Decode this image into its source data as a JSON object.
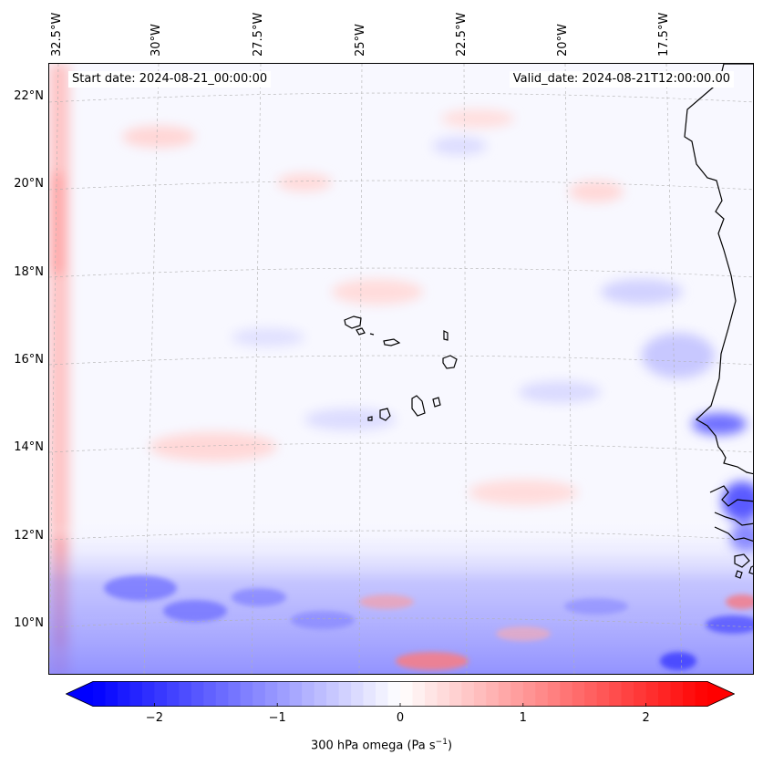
{
  "header": {
    "start_date": "Start date: 2024-08-21_00:00:00",
    "valid_date": "Valid_date: 2024-08-21T12:00:00.00"
  },
  "map": {
    "projection": "lambert-conformal",
    "lon_labels": [
      "32.5°W",
      "30°W",
      "27.5°W",
      "25°W",
      "22.5°W",
      "20°W",
      "17.5°W"
    ],
    "lat_labels": [
      "22°N",
      "20°N",
      "18°N",
      "16°N",
      "14°N",
      "12°N",
      "10°N"
    ],
    "field": "300 hPa vertical velocity (omega)",
    "features": [
      "Cape Verde islands",
      "West African coastline (Mauritania, Senegal, Gambia, Guinea-Bissau)"
    ]
  },
  "colorbar": {
    "label_prefix": "300 hPa omega (Pa s",
    "label_exp": "−1",
    "label_suffix": ")",
    "ticks": [
      "−2",
      "−1",
      "0",
      "1",
      "2"
    ],
    "tick_values": [
      -2,
      -1,
      0,
      1,
      2
    ],
    "vmin": -2.5,
    "vmax": 2.5,
    "cmap": "bwr",
    "low_color": "#0000ff",
    "mid_color": "#ffffff",
    "high_color": "#ff0000"
  }
}
